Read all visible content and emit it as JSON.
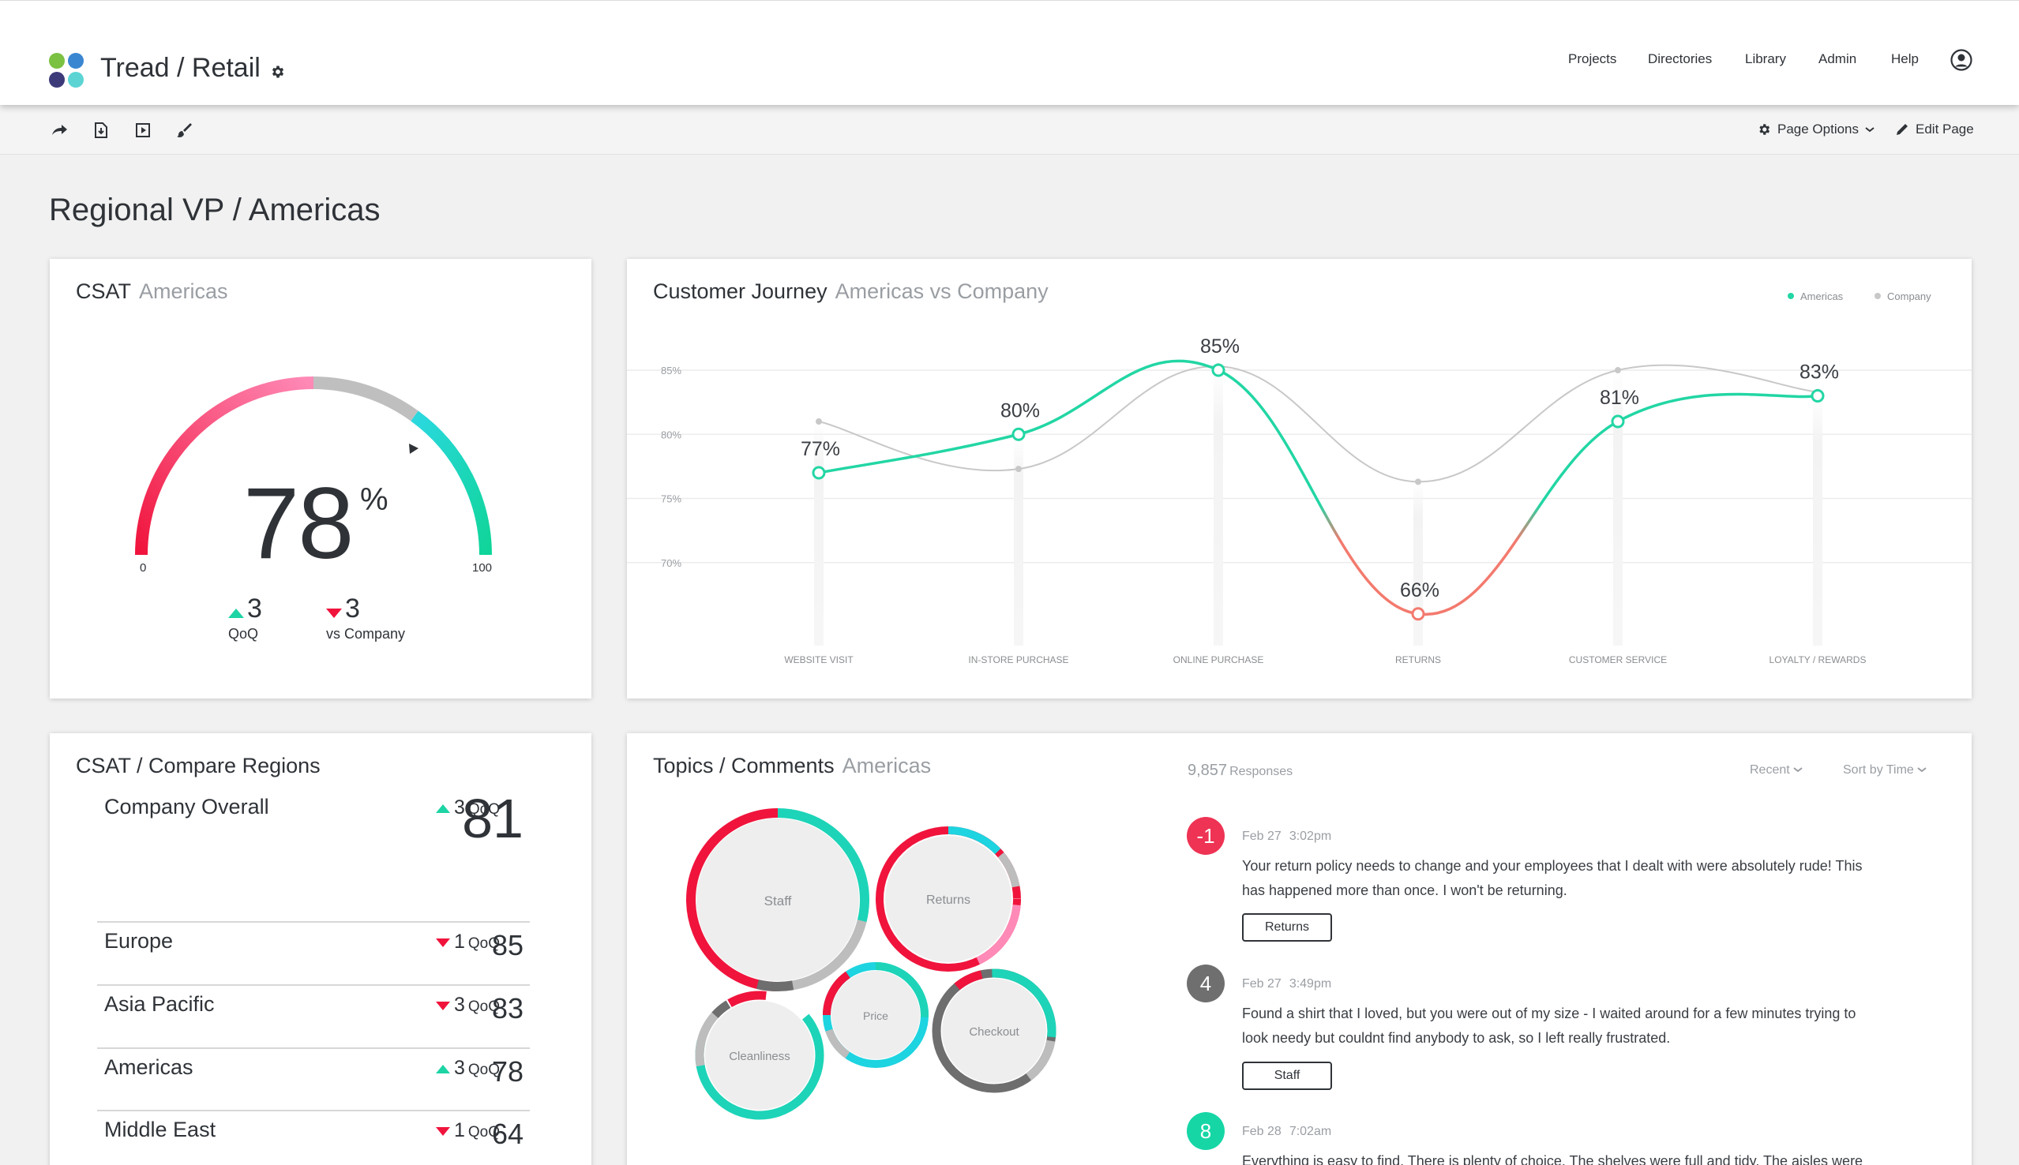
{
  "app": {
    "title": "Tread / Retail"
  },
  "nav": {
    "projects": "Projects",
    "directories": "Directories",
    "library": "Library",
    "admin": "Admin",
    "help": "Help"
  },
  "toolbar": {
    "page_options": "Page Options",
    "edit_page": "Edit Page"
  },
  "page": {
    "title": "Regional VP  /  Americas"
  },
  "csat": {
    "title": "CSAT",
    "subtitle": "Americas",
    "value": "78",
    "unit": "%",
    "min_label": "0",
    "max_label": "100",
    "qoq_value": "3",
    "qoq_label": "QoQ",
    "vs_company_value": "3",
    "vs_company_label": "vs Company",
    "colors": {
      "low": "#f0143c",
      "mid": "#ff8ab7",
      "track": "#bfbfbf",
      "high": "#1dd4b8"
    }
  },
  "journey": {
    "title": "Customer Journey",
    "subtitle": "Americas vs Company",
    "legend": {
      "americas": "Americas",
      "company": "Company"
    },
    "colors": {
      "americas": "#22d6a4",
      "company": "#c8c8c8",
      "drop": "#f37a6e"
    }
  },
  "chart_data": {
    "type": "line",
    "categories": [
      "WEBSITE VISIT",
      "IN-STORE PURCHASE",
      "ONLINE PURCHASE",
      "RETURNS",
      "CUSTOMER SERVICE",
      "LOYALTY / REWARDS"
    ],
    "ytick_labels": [
      "85%",
      "80%",
      "75%",
      "70%"
    ],
    "yticks": [
      85,
      80,
      75,
      70
    ],
    "ylim": [
      62,
      88
    ],
    "series": [
      {
        "name": "Americas",
        "values": [
          77,
          80,
          85,
          66,
          81,
          83
        ],
        "labels": [
          "77%",
          "80%",
          "85%",
          "66%",
          "81%",
          "83%"
        ]
      },
      {
        "name": "Company",
        "values": [
          81,
          77.3,
          85.3,
          76.3,
          85,
          83.3
        ]
      }
    ],
    "grid": true,
    "legend_position": "top-right"
  },
  "regions": {
    "title": "CSAT  /  Compare Regions",
    "rows": [
      {
        "name": "Company Overall",
        "dir": "up",
        "change": "3",
        "change_label": "QoQ",
        "value": "81"
      },
      {
        "name": "Europe",
        "dir": "down",
        "change": "1",
        "change_label": "QoQ",
        "value": "85"
      },
      {
        "name": "Asia Pacific",
        "dir": "down",
        "change": "3",
        "change_label": "QoQ",
        "value": "83"
      },
      {
        "name": "Americas",
        "dir": "up",
        "change": "3",
        "change_label": "QoQ",
        "value": "78"
      },
      {
        "name": "Middle East",
        "dir": "down",
        "change": "1",
        "change_label": "QoQ",
        "value": "64"
      }
    ]
  },
  "topics": {
    "title": "Topics / Comments",
    "subtitle": "Americas",
    "response_count": "9,857",
    "response_label": "Responses",
    "sort_recent": "Recent",
    "sort_time": "Sort by Time",
    "bubbles": {
      "staff": "Staff",
      "returns": "Returns",
      "price": "Price",
      "cleanliness": "Cleanliness",
      "checkout": "Checkout"
    },
    "comments": [
      {
        "score": "-1",
        "color": "#ee3354",
        "date": "Feb 27",
        "time": "3:02pm",
        "line1": "Your return policy needs to change and your employees that I dealt with were absolutely rude!  This",
        "line2": "has happened more than once.  I won't be returning.",
        "tag": "Returns"
      },
      {
        "score": "4",
        "color": "#6f6f6f",
        "date": "Feb 27",
        "time": "3:49pm",
        "line1": "Found a shirt that I loved, but you were out of my size - I waited around for a few minutes trying to",
        "line2": "look needy but couldnt find anybody to ask, so I left really frustrated.",
        "tag": "Staff"
      },
      {
        "score": "8",
        "color": "#16d6a6",
        "date": "Feb 28",
        "time": "7:02am",
        "line1": "Everything is easy to find. There is plenty of choice. The shelves were full and tidy. The aisles were"
      }
    ]
  }
}
